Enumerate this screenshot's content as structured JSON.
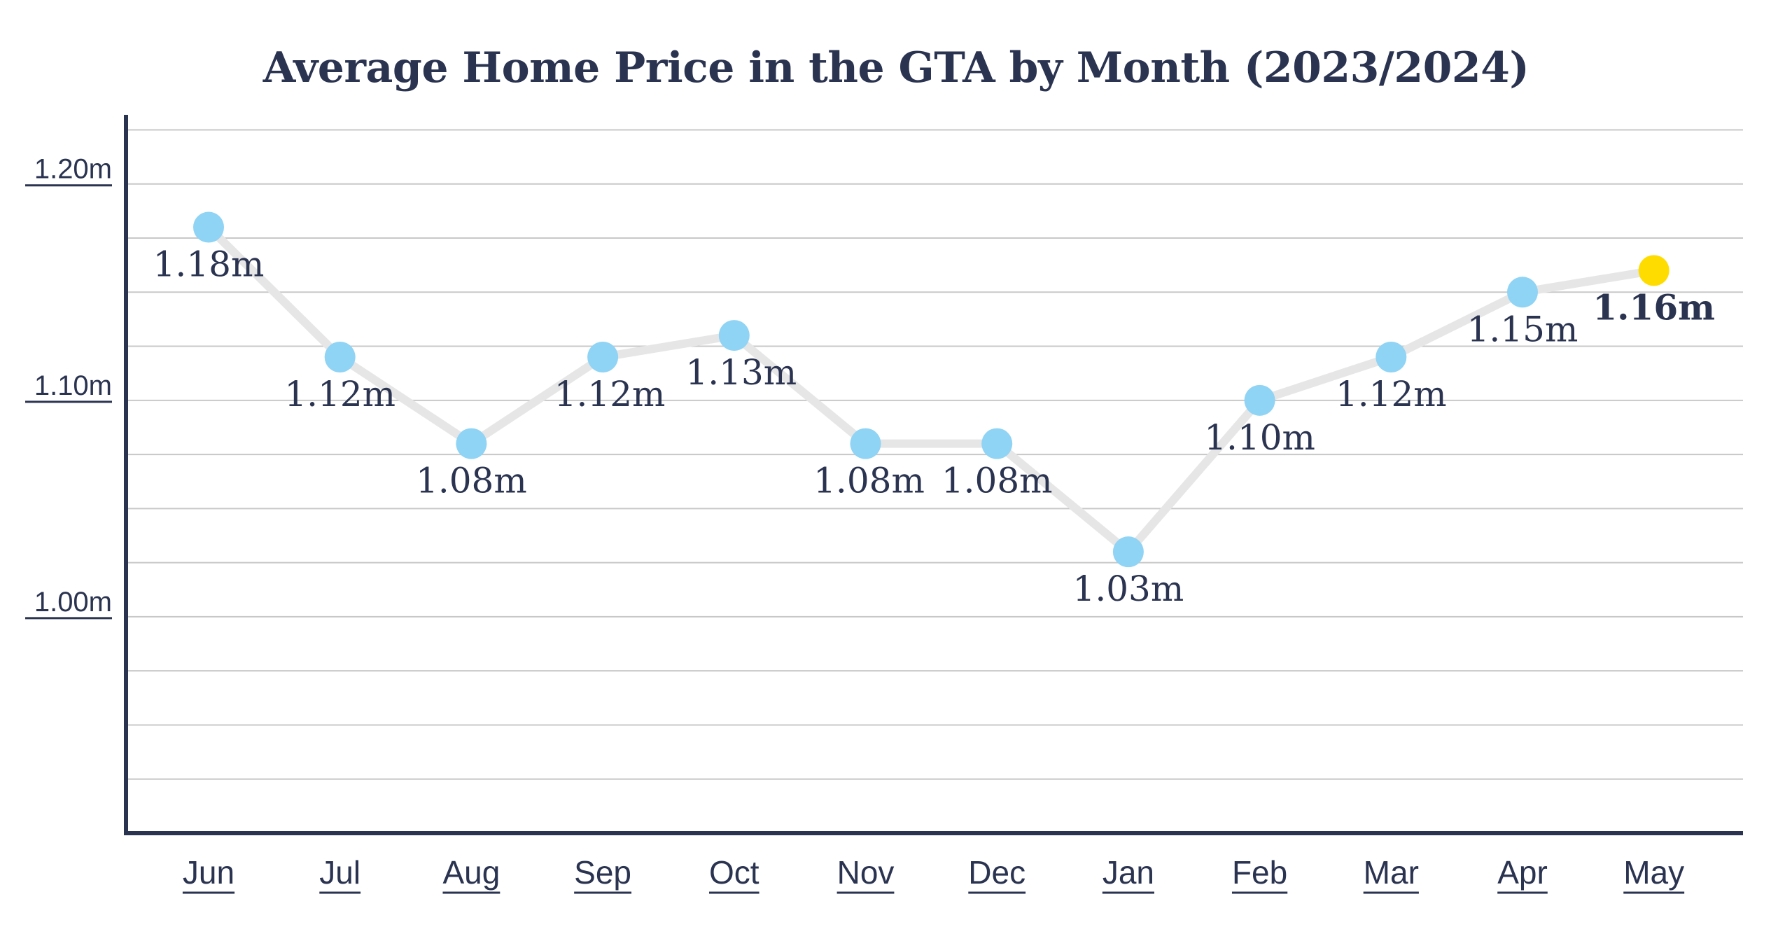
{
  "chart_data": {
    "type": "line",
    "title": "Average Home Price in the GTA by Month (2023/2024)",
    "categories": [
      "Jun",
      "Jul",
      "Aug",
      "Sep",
      "Oct",
      "Nov",
      "Dec",
      "Jan",
      "Feb",
      "Mar",
      "Apr",
      "May"
    ],
    "values": [
      1.18,
      1.12,
      1.08,
      1.12,
      1.13,
      1.08,
      1.08,
      1.03,
      1.1,
      1.12,
      1.15,
      1.16
    ],
    "data_labels": [
      "1.18m",
      "1.12m",
      "1.08m",
      "1.12m",
      "1.13m",
      "1.08m",
      "1.08m",
      "1.03m",
      "1.10m",
      "1.12m",
      "1.15m",
      "1.16m"
    ],
    "y_ticks": [
      {
        "value": 1.2,
        "label": "1.20m"
      },
      {
        "value": 1.1,
        "label": "1.10m"
      },
      {
        "value": 1.0,
        "label": "1.00m"
      }
    ],
    "ylim": [
      0.9,
      1.23
    ],
    "grid": true,
    "highlight_index": 11,
    "colors": {
      "line": "#e6e6e6",
      "point": "#8fd3f5",
      "highlight_point": "#ffdc00",
      "axis": "#2a3350",
      "grid": "#c8c8c8",
      "text": "#2a3350"
    }
  }
}
